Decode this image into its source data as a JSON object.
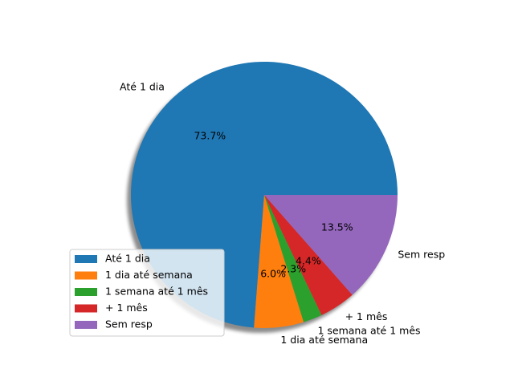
{
  "chart_data": {
    "type": "pie",
    "title": "",
    "shadow": true,
    "start_angle_deg": 0,
    "direction": "counterclockwise",
    "legend_position": "lower-left",
    "slices": [
      {
        "label": "Até 1 dia",
        "percent_label": "73.7%",
        "value": 73.7,
        "color": "#1f77b4"
      },
      {
        "label": "1 dia até  semana",
        "percent_label": "6.0%",
        "value": 6.0,
        "color": "#ff7f0e"
      },
      {
        "label": "1 semana até 1 mês",
        "percent_label": "2.3%",
        "value": 2.3,
        "color": "#2ca02c"
      },
      {
        "label": "+ 1 mês",
        "percent_label": "4.4%",
        "value": 4.4,
        "color": "#d62728"
      },
      {
        "label": "Sem resp",
        "percent_label": "13.5%",
        "value": 13.5,
        "color": "#9467bd"
      }
    ]
  }
}
